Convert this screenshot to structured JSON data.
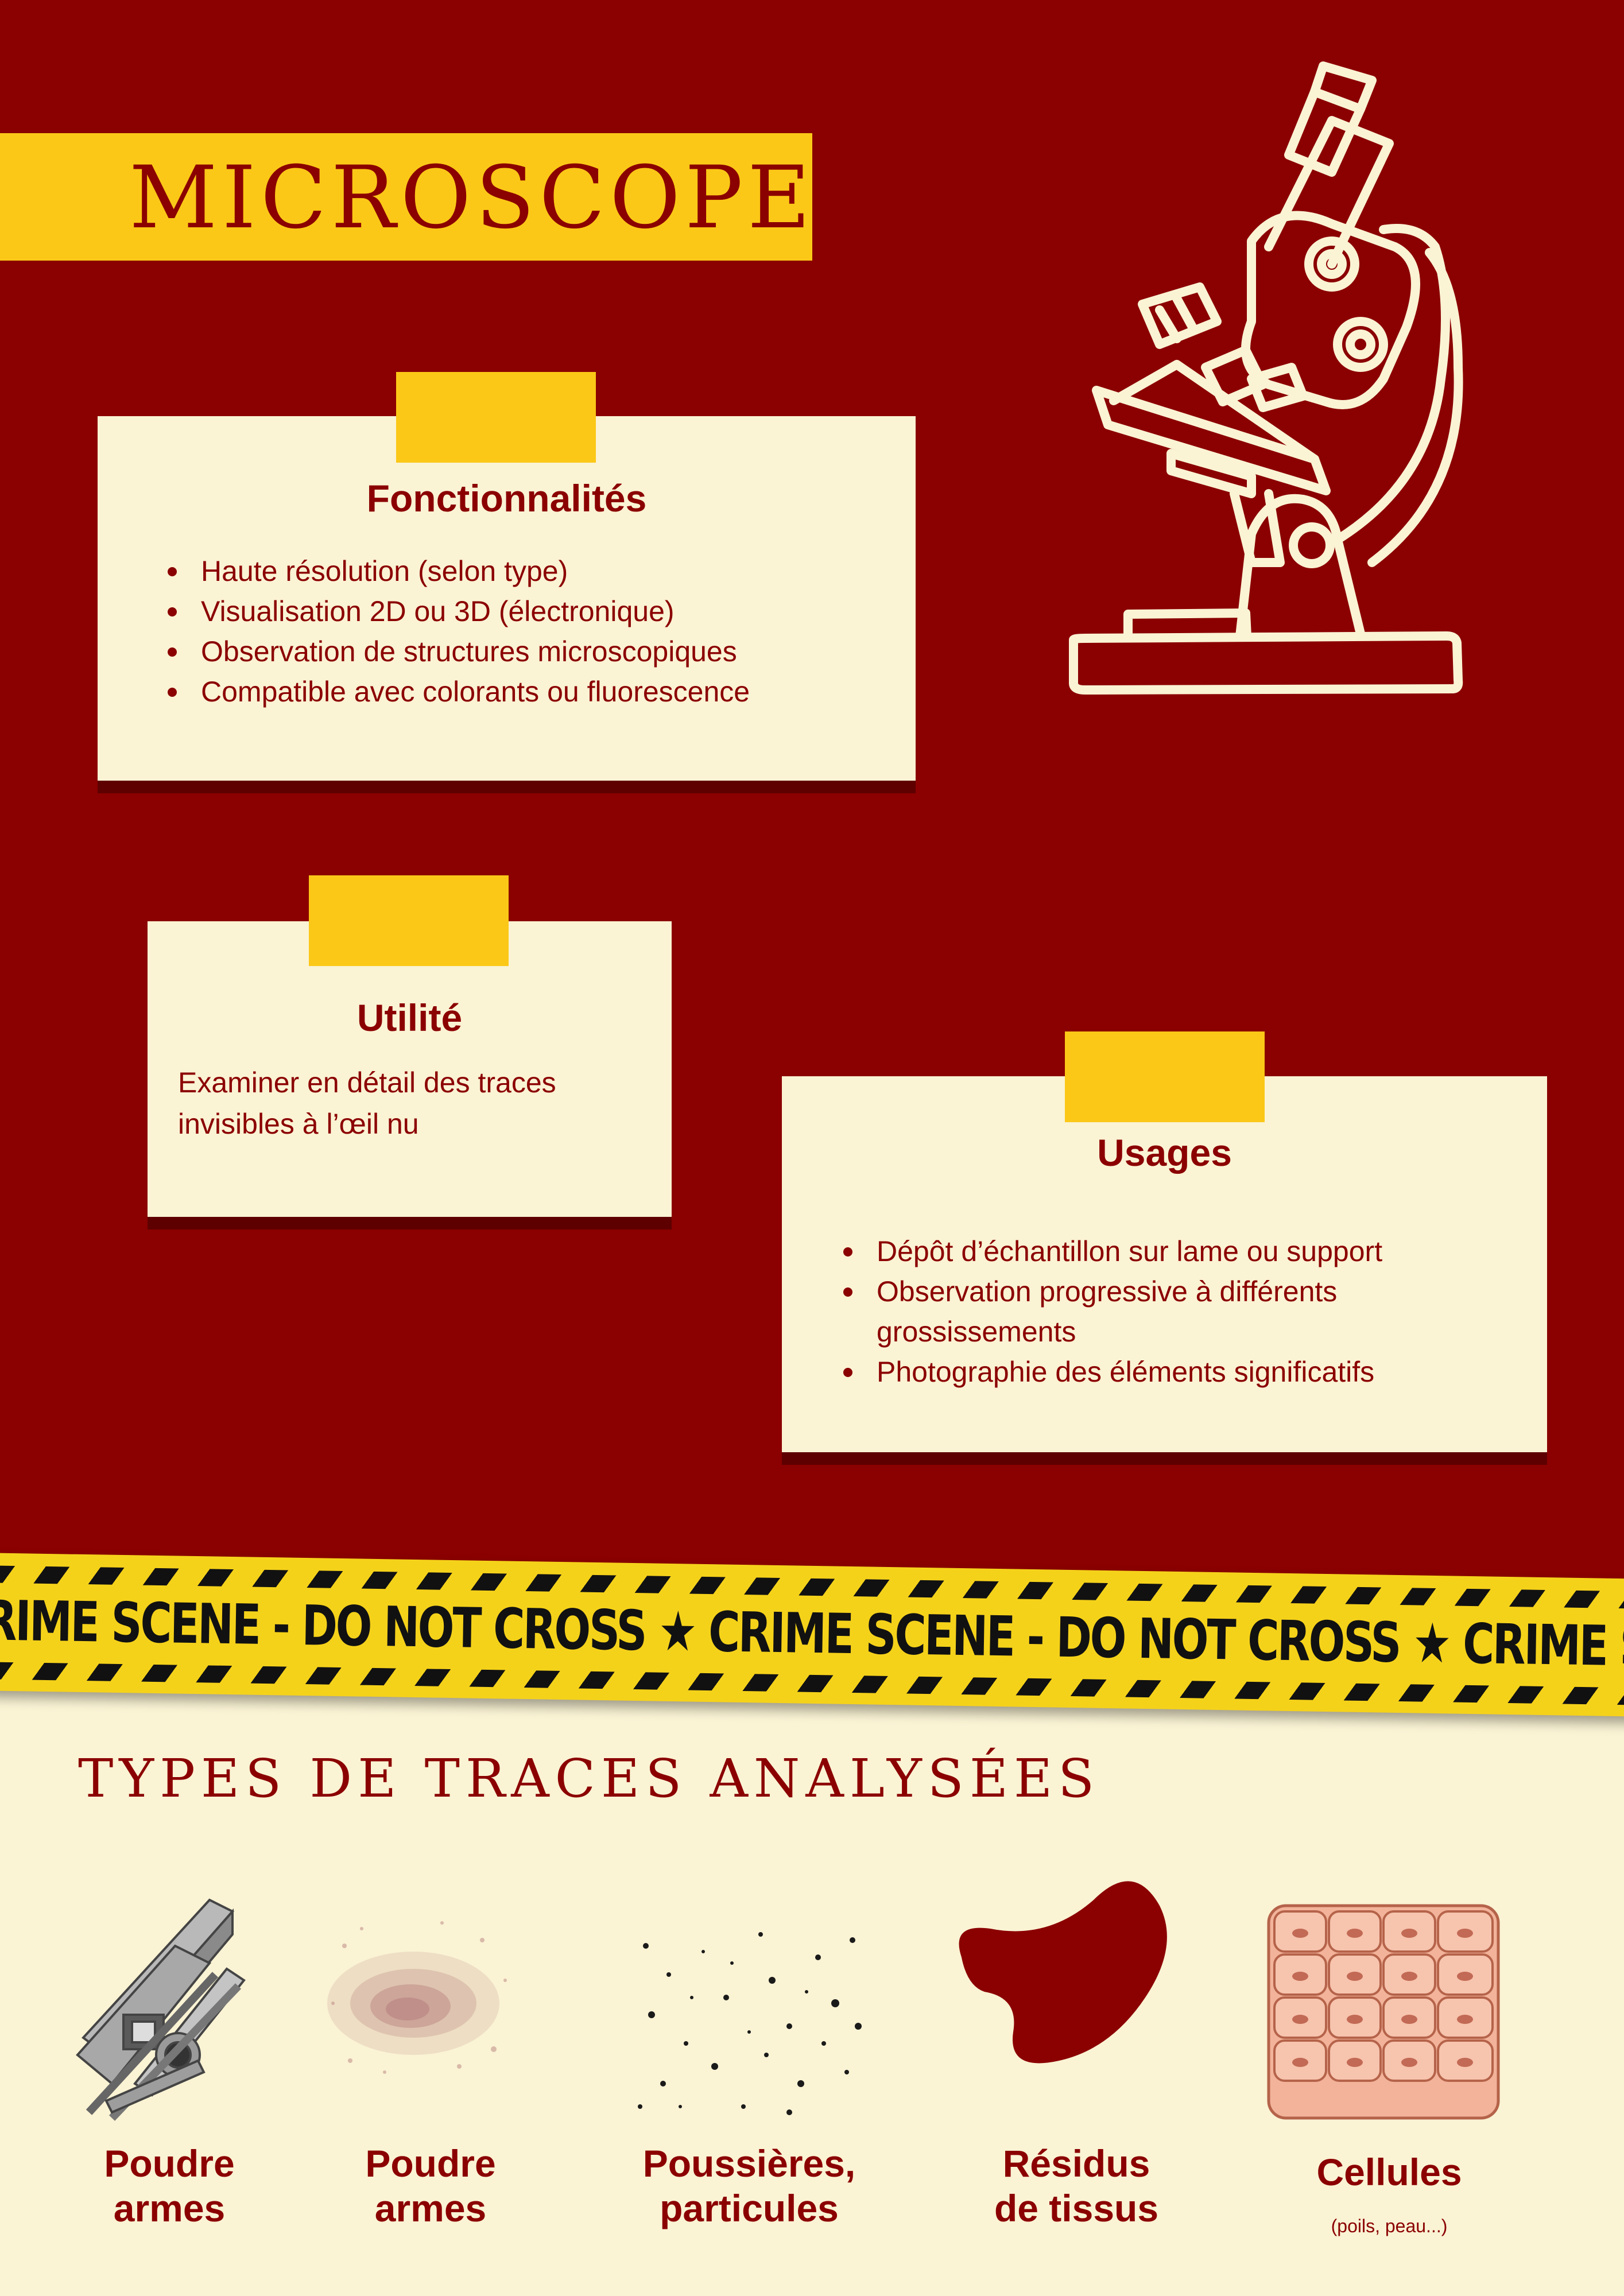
{
  "title": "MICROSCOPE",
  "cards": {
    "fonctionnalites": {
      "title": "Fonctionnalités",
      "items": [
        "Haute résolution (selon type)",
        "Visualisation 2D ou 3D (électronique)",
        "Observation de structures microscopiques",
        "Compatible avec colorants ou fluorescence"
      ]
    },
    "utilite": {
      "title": "Utilité",
      "text_line1": "Examiner en détail des traces",
      "text_line2": "invisibles à l’œil nu"
    },
    "usages": {
      "title": "Usages",
      "items": [
        "Dépôt d’échantillon sur lame ou support",
        "Observation progressive à différents grossissements",
        "Photographie des éléments significatifs"
      ]
    }
  },
  "tape": {
    "text": "CRIME SCENE - DO NOT CROSS ★ CRIME SCENE - DO NOT CROSS ★ CRIME SCENE - DO NOT CROSS ★ CRIME SCENE - DO NOT CROSS"
  },
  "traces": {
    "title": "TYPES DE TRACES ANALYSÉES",
    "items": [
      {
        "line1": "Poudre",
        "line2": "armes",
        "icon": "metal-bars-icon"
      },
      {
        "line1": "Poudre",
        "line2": "armes",
        "icon": "powder-icon"
      },
      {
        "line1": "Poussières,",
        "line2": "particules",
        "icon": "dust-particles-icon"
      },
      {
        "line1": "Résidus",
        "line2": "de tissus",
        "icon": "tissue-blob-icon"
      },
      {
        "line1": "Cellules",
        "line2": "",
        "note": "(poils, peau...)",
        "icon": "cells-icon"
      }
    ]
  },
  "colors": {
    "background_red": "#8b0000",
    "accent_yellow": "#fbc817",
    "cream": "#faf3d4",
    "skin": "#f2b39a"
  }
}
